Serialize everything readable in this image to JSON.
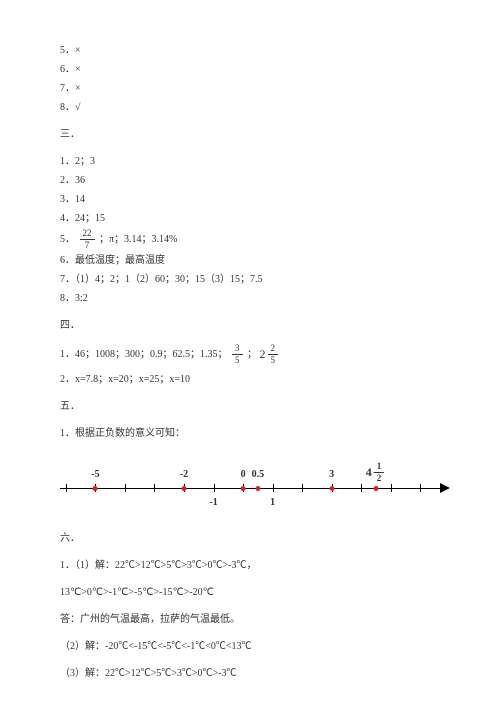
{
  "tf": {
    "a5": "5．×",
    "a6": "6．×",
    "a7": "7．×",
    "a8": "8．√"
  },
  "s3": {
    "head": "三．",
    "a1": "1．2；3",
    "a2": "2．36",
    "a3": "3．14",
    "a4": "4．24；15",
    "a5_prefix": "5．",
    "a5_frac_n": "22",
    "a5_frac_d": "7",
    "a5_tail": "；π；3.14；3.14%",
    "a6": "6．最低温度；最高温度",
    "a7": "7．（1）4；2；1（2）60；30；15（3）15；7.5",
    "a8": "8．3:2"
  },
  "s4": {
    "head": "四．",
    "a1_prefix": "1．46；1008；300；0.9；62.5；1.35；",
    "a1_frac1_n": "3",
    "a1_frac1_d": "5",
    "a1_sep": "；",
    "a1_mixed_w": "2",
    "a1_mixed_n": "2",
    "a1_mixed_d": "5",
    "a2": "2．x=7.8；x=20；x=25；x=10"
  },
  "s5": {
    "head": "五．",
    "a1": "1．根据正负数的意义可知："
  },
  "nl": {
    "range_left": -6.2,
    "range_right": 6.5,
    "axis_color": "#000000",
    "dot_color": "#dd2222",
    "ticks": [
      -6,
      -5,
      -4,
      -3,
      -2,
      -1,
      0,
      1,
      2,
      3,
      4,
      5,
      6
    ],
    "labels_bottom": [
      {
        "x": -1,
        "text": "-1"
      },
      {
        "x": 1,
        "text": "1"
      }
    ],
    "labels_top": [
      {
        "x": -5,
        "text": "-5"
      },
      {
        "x": -2,
        "text": "-2"
      },
      {
        "x": 0,
        "text": "0"
      },
      {
        "x": 0.5,
        "text": "0.5"
      },
      {
        "x": 3,
        "text": "3"
      },
      {
        "x": 4.5,
        "text_mixed": {
          "w": "4",
          "n": "1",
          "d": "2"
        }
      }
    ],
    "dots": [
      -5,
      -2,
      0,
      0.5,
      3,
      4.5
    ]
  },
  "s6": {
    "head": "六．",
    "l1": "1．（1）解：22℃>12℃>5℃>3℃>0℃>-3℃，",
    "l2": "13℃>0℃>-1℃>-5℃>-15℃>-20℃",
    "l3": "答：广州的气温最高，拉萨的气温最低。",
    "l4": "（2）解：-20℃<-15℃<-5℃<-1℃<0℃<13℃",
    "l5": "（3）解：22℃>12℃>5℃>3℃>0℃>-3℃"
  }
}
